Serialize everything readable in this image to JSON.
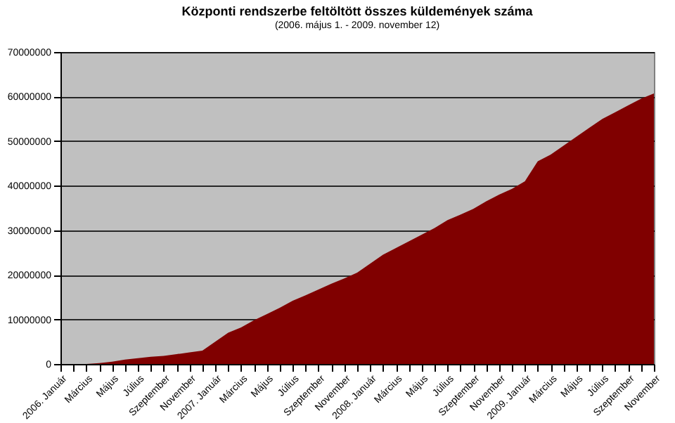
{
  "chart_data": {
    "type": "area",
    "title": "Központi rendszerbe feltöltött összes küldemények száma",
    "subtitle": "(2006. május 1. - 2009. november 12)",
    "categories": [
      "2006. Január",
      null,
      "Március",
      null,
      "Május",
      null,
      "Július",
      null,
      "Szeptember",
      null,
      "November",
      null,
      "2007. Január",
      null,
      "Március",
      null,
      "Május",
      null,
      "Július",
      null,
      "Szeptember",
      null,
      "November",
      null,
      "2008. Január",
      null,
      "Március",
      null,
      "Május",
      null,
      "Július",
      null,
      "Szeptember",
      null,
      "November",
      null,
      "2009. Január",
      null,
      "Március",
      null,
      "Május",
      null,
      "Július",
      null,
      "Szeptember",
      null,
      "November"
    ],
    "series": [
      {
        "color": "#800000",
        "values": [
          0,
          0,
          0,
          200000,
          500000,
          1000000,
          1300000,
          1600000,
          1800000,
          2200000,
          2600000,
          3000000,
          5000000,
          7000000,
          8200000,
          9800000,
          11200000,
          12600000,
          14200000,
          15400000,
          16700000,
          18000000,
          19200000,
          20500000,
          22500000,
          24500000,
          26000000,
          27500000,
          29000000,
          30500000,
          32300000,
          33500000,
          34800000,
          36500000,
          38000000,
          39300000,
          41000000,
          45500000,
          47000000,
          49000000,
          51000000,
          53000000,
          55000000,
          56500000,
          58000000,
          59500000,
          60700000
        ]
      }
    ],
    "ylim": [
      0,
      70000000
    ],
    "yticks": [
      0,
      10000000,
      20000000,
      30000000,
      40000000,
      50000000,
      60000000,
      70000000
    ],
    "grid": "y"
  }
}
